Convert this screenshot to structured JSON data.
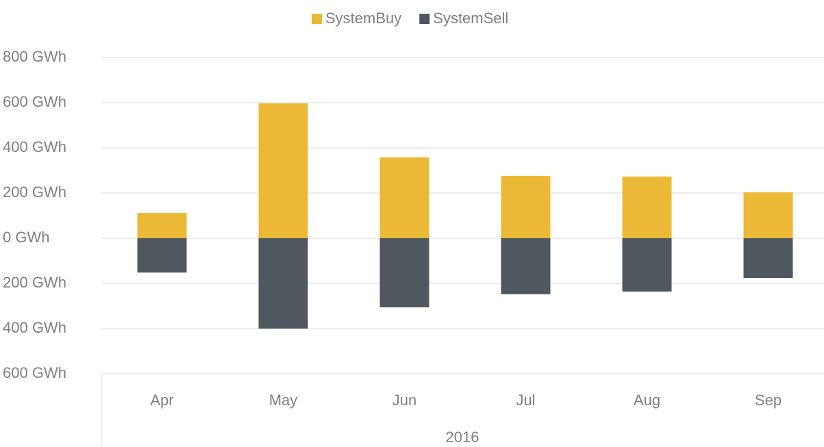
{
  "chart_data": {
    "type": "bar",
    "stacked": true,
    "categories": [
      "Apr",
      "May",
      "Jun",
      "Jul",
      "Aug",
      "Sep"
    ],
    "category_group": "2016",
    "series": [
      {
        "name": "SystemBuy",
        "color": "#ebb935",
        "values": [
          112,
          597,
          358,
          276,
          273,
          203
        ]
      },
      {
        "name": "SystemSell",
        "color": "#4f575f",
        "values": [
          -152,
          -400,
          -306,
          -248,
          -236,
          -176
        ]
      }
    ],
    "ylim": [
      -600,
      800
    ],
    "yticks": [
      {
        "value": 800,
        "label": "800 GWh"
      },
      {
        "value": 600,
        "label": "600 GWh"
      },
      {
        "value": 400,
        "label": "400 GWh"
      },
      {
        "value": 200,
        "label": "200 GWh"
      },
      {
        "value": 0,
        "label": "0 GWh"
      },
      {
        "value": -200,
        "label": "200 GWh"
      },
      {
        "value": -400,
        "label": "400 GWh"
      },
      {
        "value": -600,
        "label": "600 GWh"
      }
    ],
    "grid": true,
    "legend": "top"
  }
}
